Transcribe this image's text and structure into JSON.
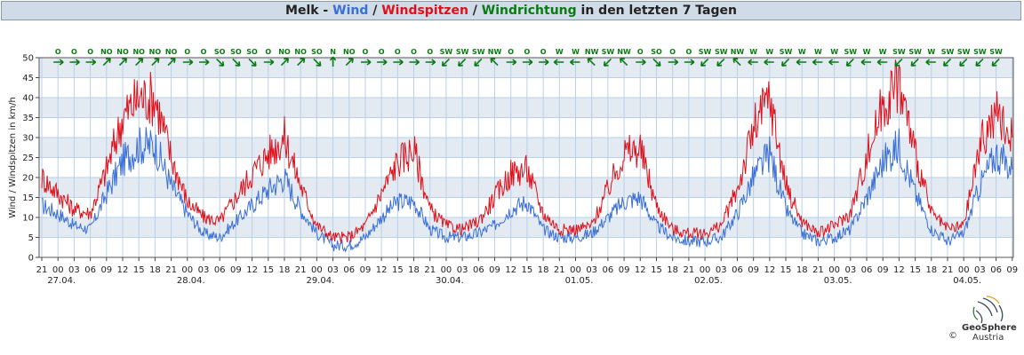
{
  "title": {
    "station": "Melk",
    "sep1": " - ",
    "wind": "Wind",
    "sep2": " / ",
    "gust": "Windspitzen",
    "sep3": " / ",
    "direction": "Windrichtung",
    "suffix": " in den letzten 7 Tagen"
  },
  "colors": {
    "wind": "#3a6fd8",
    "gust": "#e0101a",
    "direction": "#0a7a12",
    "band": "#e3eaf2",
    "grid": "#b8d0ea"
  },
  "logo": {
    "name": "GeoSphere",
    "sub": "Austria",
    "copyright": "©"
  },
  "chart_data": {
    "type": "line",
    "ylabel": "Wind / Windspitzen in km/h",
    "ylim": [
      0,
      50
    ],
    "yticks": [
      0,
      5,
      10,
      15,
      20,
      25,
      30,
      35,
      40,
      45,
      50
    ],
    "x_range_hours": [
      -3.5,
      177.2
    ],
    "hour_ticks": [
      "21",
      "00",
      "03",
      "06",
      "09",
      "12",
      "15",
      "18",
      "21",
      "00",
      "03",
      "06",
      "09",
      "12",
      "15",
      "18",
      "21",
      "00",
      "03",
      "06",
      "09",
      "12",
      "15",
      "18",
      "21",
      "00",
      "03",
      "06",
      "09",
      "12",
      "15",
      "18",
      "21",
      "00",
      "03",
      "06",
      "09",
      "12",
      "15",
      "18",
      "21",
      "00",
      "03",
      "06",
      "09",
      "12",
      "15",
      "18",
      "21",
      "00",
      "03",
      "06",
      "09",
      "12",
      "15",
      "18",
      "21",
      "00",
      "03",
      "06",
      "09"
    ],
    "date_labels": [
      {
        "label": "27.04.",
        "day_index": 0
      },
      {
        "label": "28.04.",
        "day_index": 1
      },
      {
        "label": "29.04.",
        "day_index": 2
      },
      {
        "label": "30.04.",
        "day_index": 3
      },
      {
        "label": "01.05.",
        "day_index": 4
      },
      {
        "label": "02.05.",
        "day_index": 5
      },
      {
        "label": "03.05.",
        "day_index": 6
      },
      {
        "label": "04.05.",
        "day_index": 7
      }
    ],
    "direction_labels": [
      "O",
      "O",
      "O",
      "NO",
      "NO",
      "NO",
      "NO",
      "NO",
      "O",
      "O",
      "SO",
      "SO",
      "SO",
      "O",
      "NO",
      "NO",
      "SO",
      "N",
      "NO",
      "O",
      "O",
      "O",
      "O",
      "O",
      "SW",
      "SW",
      "SW",
      "NW",
      "O",
      "O",
      "O",
      "W",
      "W",
      "NW",
      "SW",
      "NW",
      "O",
      "SO",
      "O",
      "O",
      "SW",
      "SW",
      "NW",
      "W",
      "W",
      "SW",
      "W",
      "W",
      "W",
      "SW",
      "W",
      "W",
      "SW",
      "SW",
      "W",
      "SW",
      "SW",
      "SW",
      "SW"
    ],
    "series": [
      {
        "name": "Wind",
        "color": "#3a6fd8",
        "x_hours": [
          -3,
          0,
          3,
          6,
          9,
          12,
          15,
          18,
          21,
          24,
          27,
          30,
          33,
          36,
          39,
          42,
          45,
          48,
          51,
          54,
          57,
          60,
          63,
          66,
          69,
          72,
          75,
          78,
          81,
          84,
          87,
          90,
          93,
          96,
          99,
          102,
          105,
          108,
          111,
          114,
          117,
          120,
          123,
          126,
          129,
          132,
          135,
          138,
          141,
          144,
          147,
          150,
          153,
          156,
          159,
          162,
          165,
          168,
          171,
          174,
          177
        ],
        "values": [
          13,
          11,
          8,
          7,
          16,
          24,
          28,
          28,
          18,
          11,
          6,
          5,
          9,
          13,
          17,
          20,
          12,
          6,
          3,
          3,
          5,
          10,
          14,
          14,
          7,
          5,
          5,
          6,
          8,
          12,
          14,
          7,
          5,
          5,
          6,
          10,
          14,
          15,
          8,
          5,
          4,
          4,
          5,
          11,
          20,
          26,
          12,
          6,
          4,
          5,
          7,
          15,
          24,
          28,
          16,
          7,
          4,
          6,
          18,
          26,
          22
        ]
      },
      {
        "name": "Windspitzen",
        "color": "#e0101a",
        "x_hours": [
          -3,
          0,
          3,
          6,
          9,
          12,
          15,
          18,
          21,
          24,
          27,
          30,
          33,
          36,
          39,
          42,
          45,
          48,
          51,
          54,
          57,
          60,
          63,
          66,
          69,
          72,
          75,
          78,
          81,
          84,
          87,
          90,
          93,
          96,
          99,
          102,
          105,
          108,
          111,
          114,
          117,
          120,
          123,
          126,
          129,
          132,
          135,
          138,
          141,
          144,
          147,
          150,
          153,
          156,
          159,
          162,
          165,
          168,
          171,
          174,
          177
        ],
        "values": [
          20,
          16,
          12,
          11,
          22,
          35,
          40,
          40,
          25,
          14,
          10,
          9,
          15,
          21,
          26,
          30,
          18,
          8,
          5,
          5,
          8,
          16,
          24,
          27,
          12,
          8,
          7,
          9,
          15,
          21,
          22,
          11,
          7,
          7,
          8,
          17,
          26,
          27,
          13,
          7,
          6,
          6,
          8,
          17,
          32,
          40,
          18,
          9,
          6,
          8,
          11,
          25,
          38,
          44,
          26,
          11,
          7,
          8,
          28,
          36,
          30
        ]
      }
    ]
  }
}
